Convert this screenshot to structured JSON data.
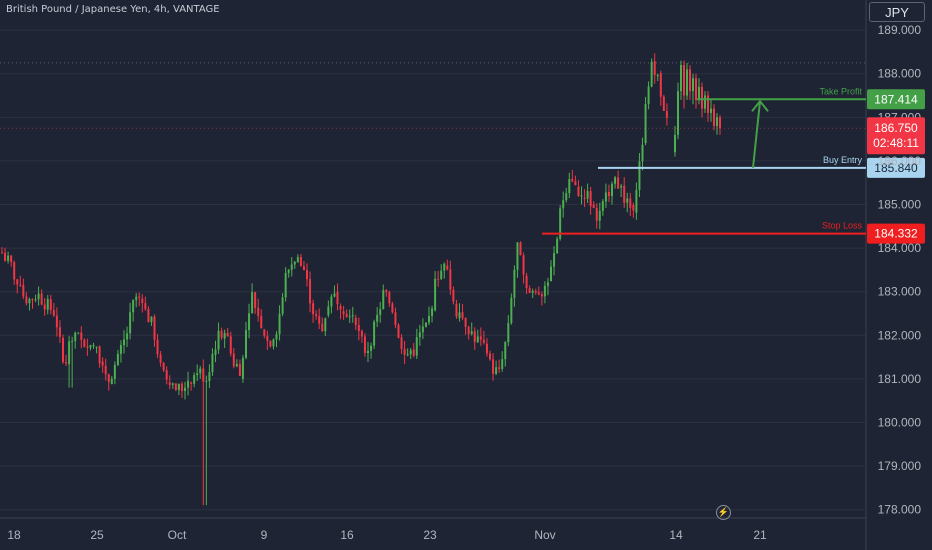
{
  "header": {
    "title": "British Pound / Japanese Yen, 4h, VANTAGE"
  },
  "price_axis": {
    "currency_label": "JPY"
  },
  "icons": {
    "bolt": "lightning-icon"
  },
  "colors": {
    "background": "#1e2433",
    "up": "#4caf50",
    "down": "#f23645",
    "take_profit": "#43a047",
    "buy_entry": "#a8d4f0",
    "stop_loss": "#f01e1e",
    "current": "#f23645"
  },
  "chart_data": {
    "type": "candlestick",
    "ylim": [
      177.9,
      189.6
    ],
    "y_ticks": [
      "189.000",
      "188.000",
      "187.000",
      "186.000",
      "185.000",
      "184.000",
      "183.000",
      "182.000",
      "181.000",
      "180.000",
      "179.000",
      "178.000"
    ],
    "x_ticks": [
      "18",
      "25",
      "Oct",
      "9",
      "16",
      "23",
      "Nov",
      "14",
      "21"
    ],
    "levels": [
      {
        "name": "Take Profit",
        "price": "187.414",
        "value": 187.414
      },
      {
        "name": "Buy Entry",
        "price": "185.840",
        "value": 185.84
      },
      {
        "name": "Stop Loss",
        "price": "184.332",
        "value": 184.332
      }
    ],
    "current": {
      "price": "186.750",
      "value": 186.75,
      "countdown": "02:48:11"
    },
    "arrow": {
      "from": 185.84,
      "to": 187.414
    },
    "price_path": [
      183.9,
      183.6,
      183.0,
      182.8,
      182.95,
      182.7,
      182.5,
      181.2,
      182.1,
      181.8,
      181.9,
      181.5,
      181.0,
      181.4,
      182.0,
      182.9,
      182.6,
      182.2,
      181.1,
      180.9,
      180.8,
      180.8,
      181.2,
      181.0,
      181.8,
      182.2,
      181.4,
      181.2,
      183.0,
      182.4,
      181.8,
      182.2,
      183.4,
      183.8,
      183.5,
      182.6,
      182.0,
      183.0,
      182.8,
      182.5,
      182.1,
      181.6,
      182.2,
      183.0,
      182.6,
      181.8,
      181.5,
      182.0,
      182.3,
      183.4,
      183.6,
      182.6,
      182.4,
      182.0,
      181.8,
      181.3,
      181.1,
      182.1,
      184.1,
      183.0,
      182.9,
      183.1,
      183.5,
      185.0,
      185.8,
      185.1,
      185.2,
      184.7,
      185.1,
      185.8,
      185.1,
      184.9,
      186.2,
      188.2,
      187.8,
      186.8
    ]
  }
}
